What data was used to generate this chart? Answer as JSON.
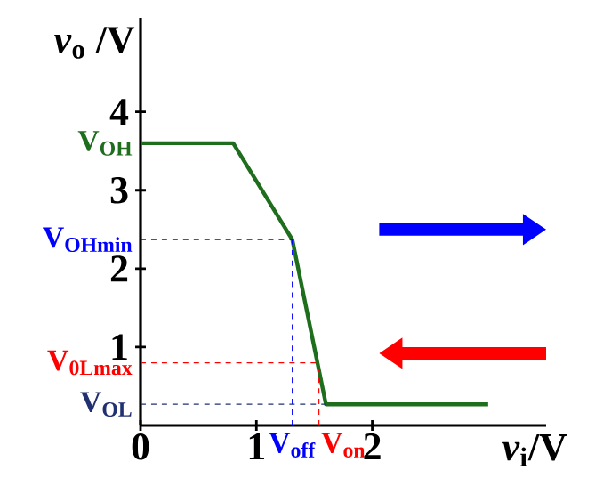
{
  "chart_data": {
    "type": "line",
    "xlabel": "*v*$_{i}$/V",
    "ylabel": "*v*$_{o}$ /V",
    "xlim": [
      0,
      3.5
    ],
    "ylim": [
      0,
      5.2
    ],
    "xticks": [
      0,
      1,
      2
    ],
    "yticks": [
      1,
      2,
      3,
      4
    ],
    "marker": "none",
    "line_style": "solid",
    "series": [
      {
        "color": "#1e6e1e",
        "x": [
          0,
          0.8,
          1.31,
          1.6,
          3.0
        ],
        "values": [
          3.6,
          3.6,
          2.37,
          0.27,
          0.27
        ]
      }
    ],
    "ref_lines": [
      {
        "axis": "y",
        "value": 2.37,
        "label": "V$_{OHmin}$",
        "color": "#0000ff",
        "line_style": "dashed"
      },
      {
        "axis": "y",
        "value": 0.8,
        "label": "V$_{0Lmax}$",
        "color": "#ff0000",
        "line_style": "dashed"
      },
      {
        "axis": "y",
        "value": 0.27,
        "label": "V$_{OL}$",
        "color": "#203070",
        "line_style": "dashed"
      },
      {
        "axis": "x",
        "value": 1.31,
        "label": "V$_{off}$",
        "color": "#0000ff",
        "line_style": "dashed"
      },
      {
        "axis": "x",
        "value": 1.54,
        "label": "V$_{on}$",
        "color": "#ff0000",
        "line_style": "dashed"
      }
    ],
    "annotations": [
      {
        "text": "V$_{OH}$",
        "x": 0,
        "y": 3.6
      }
    ]
  }
}
